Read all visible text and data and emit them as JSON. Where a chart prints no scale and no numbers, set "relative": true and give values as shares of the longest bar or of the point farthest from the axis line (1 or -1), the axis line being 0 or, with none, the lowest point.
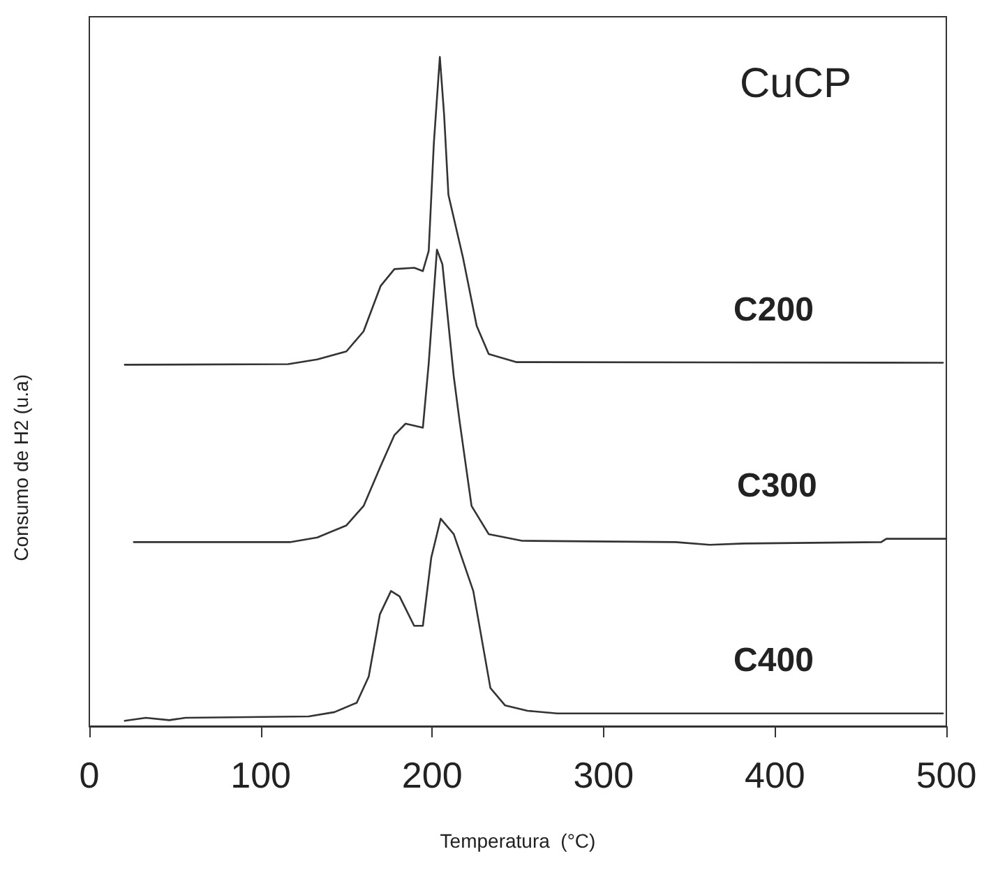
{
  "chart_data": {
    "type": "line",
    "title": "CuCP",
    "xlabel": "Temperatura  (°C)",
    "ylabel": "Consumo de H2 (u.a)",
    "relative": true,
    "xlim": [
      0,
      500
    ],
    "xticks": [
      0,
      100,
      200,
      300,
      400,
      500
    ],
    "grid": false,
    "legend": false,
    "marker": "none",
    "line_style": "solid",
    "series": [
      {
        "name": "C200",
        "color": "#333333",
        "x": [
          20.7,
          116,
          133,
          150,
          160,
          170,
          178,
          189.6,
          194.6,
          198,
          201,
          204.5,
          207,
          209.5,
          218,
          226,
          233,
          249,
          498
        ],
        "values": [
          0.54,
          0.541,
          0.548,
          0.56,
          0.59,
          0.658,
          0.683,
          0.685,
          0.68,
          0.71,
          0.871,
          1.0,
          0.913,
          0.794,
          0.7,
          0.598,
          0.556,
          0.544,
          0.543
        ]
      },
      {
        "name": "C300",
        "color": "#333333",
        "x": [
          26,
          117,
          133,
          150,
          160,
          170,
          178,
          184.5,
          194.6,
          198,
          202.8,
          206,
          212.6,
          216,
          223,
          233,
          252.5,
          342,
          362,
          382,
          462,
          465,
          500
        ],
        "values": [
          0.275,
          0.275,
          0.282,
          0.3,
          0.329,
          0.389,
          0.435,
          0.452,
          0.446,
          0.542,
          0.712,
          0.69,
          0.523,
          0.456,
          0.329,
          0.287,
          0.277,
          0.275,
          0.271,
          0.273,
          0.275,
          0.28,
          0.28
        ]
      },
      {
        "name": "C400",
        "color": "#333333",
        "x": [
          20.7,
          33,
          46.6,
          56,
          128,
          143,
          156,
          163,
          169.5,
          176,
          181,
          189.5,
          194.6,
          199.5,
          205,
          212.6,
          224,
          234,
          242.6,
          255.7,
          273,
          498
        ],
        "values": [
          0.008,
          0.0125,
          0.009,
          0.0125,
          0.0146,
          0.021,
          0.035,
          0.074,
          0.167,
          0.202,
          0.194,
          0.15,
          0.15,
          0.252,
          0.31,
          0.287,
          0.202,
          0.057,
          0.031,
          0.023,
          0.019,
          0.019
        ]
      }
    ]
  }
}
